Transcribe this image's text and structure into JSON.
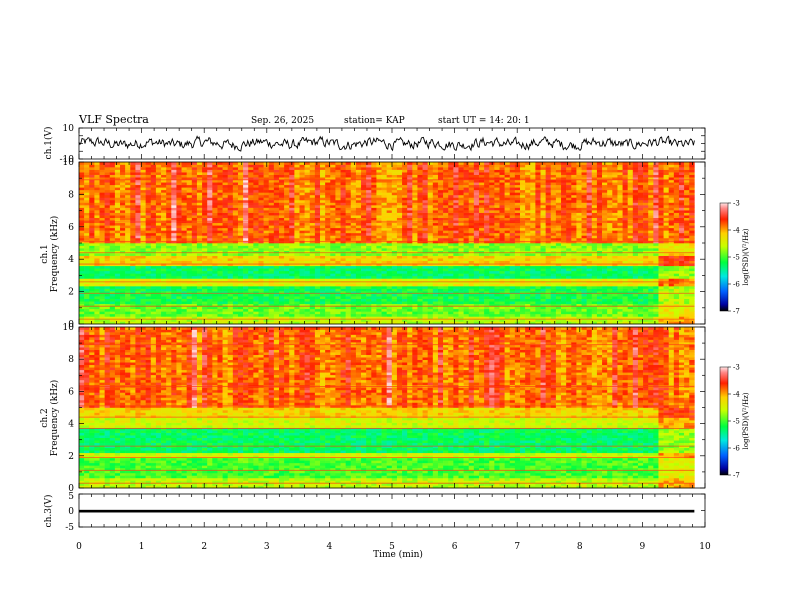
{
  "header": {
    "title": "VLF Spectra",
    "date": "Sep. 26, 2025",
    "station": "station= KAP",
    "start_ut": "start  UT  =   14: 20: 1"
  },
  "chart_data": [
    {
      "type": "line",
      "panel": "ch1-waveform",
      "ylabel": "ch.1(V)",
      "ylim": [
        -10,
        10
      ],
      "yticks": [
        "10",
        "-10"
      ],
      "xlim": [
        0,
        10
      ],
      "description_series": "noisy voltage trace around 0 V, amplitude about ±4 V"
    },
    {
      "type": "heatmap",
      "panel": "ch1-spectrogram",
      "ylabel_line1": "ch.1",
      "ylabel_line2": "Frequency  (kHz)",
      "ylim": [
        0,
        10
      ],
      "yticks": [
        "0",
        "2",
        "4",
        "6",
        "8",
        "10"
      ],
      "xlim": [
        0,
        10
      ],
      "data_end_min": 9.83,
      "band_change_min": 9.25,
      "colorbar": {
        "label": "log(PSD)(V²/Hz)",
        "range": [
          -7,
          -3
        ],
        "ticks": [
          "-3",
          "-4",
          "-5",
          "-6",
          "-7"
        ]
      },
      "dominant_level_by_band_khz": [
        {
          "from": 0.0,
          "to": 0.5,
          "level": -4.6
        },
        {
          "from": 0.5,
          "to": 1.3,
          "level": -4.9
        },
        {
          "from": 1.3,
          "to": 2.3,
          "level": -5.2
        },
        {
          "from": 2.3,
          "to": 2.8,
          "level": -4.4
        },
        {
          "from": 2.8,
          "to": 3.6,
          "level": -5.3
        },
        {
          "from": 3.6,
          "to": 4.2,
          "level": -4.2
        },
        {
          "from": 4.2,
          "to": 5.0,
          "level": -4.8
        },
        {
          "from": 5.0,
          "to": 10.0,
          "level": -3.8
        }
      ]
    },
    {
      "type": "heatmap",
      "panel": "ch2-spectrogram",
      "ylabel_line1": "ch.2",
      "ylabel_line2": "Frequency  (kHz)",
      "ylim": [
        0,
        10
      ],
      "yticks": [
        "0",
        "2",
        "4",
        "6",
        "8",
        "10"
      ],
      "xlim": [
        0,
        10
      ],
      "data_end_min": 9.83,
      "band_change_min": 9.25,
      "colorbar": {
        "label": "log(PSD)(V²/Hz)",
        "range": [
          -7,
          -3
        ],
        "ticks": [
          "-3",
          "-4",
          "-5",
          "-6",
          "-7"
        ]
      },
      "dominant_level_by_band_khz": [
        {
          "from": 0.0,
          "to": 0.6,
          "level": -4.6
        },
        {
          "from": 0.6,
          "to": 1.8,
          "level": -5.0
        },
        {
          "from": 1.8,
          "to": 2.2,
          "level": -4.5
        },
        {
          "from": 2.2,
          "to": 3.8,
          "level": -5.3
        },
        {
          "from": 3.8,
          "to": 4.4,
          "level": -4.5
        },
        {
          "from": 4.4,
          "to": 5.0,
          "level": -4.2
        },
        {
          "from": 5.0,
          "to": 10.0,
          "level": -3.8
        }
      ]
    },
    {
      "type": "line",
      "panel": "ch3-waveform",
      "ylabel": "ch.3(V)",
      "ylim": [
        -5,
        5
      ],
      "yticks": [
        "5",
        "0",
        "-5"
      ],
      "xlim": [
        0,
        10
      ],
      "xlabel": "Time  (min)",
      "xticks": [
        "0",
        "1",
        "2",
        "3",
        "4",
        "5",
        "6",
        "7",
        "8",
        "9",
        "10"
      ],
      "level_band_v": [
        -0.6,
        0.2
      ]
    }
  ]
}
